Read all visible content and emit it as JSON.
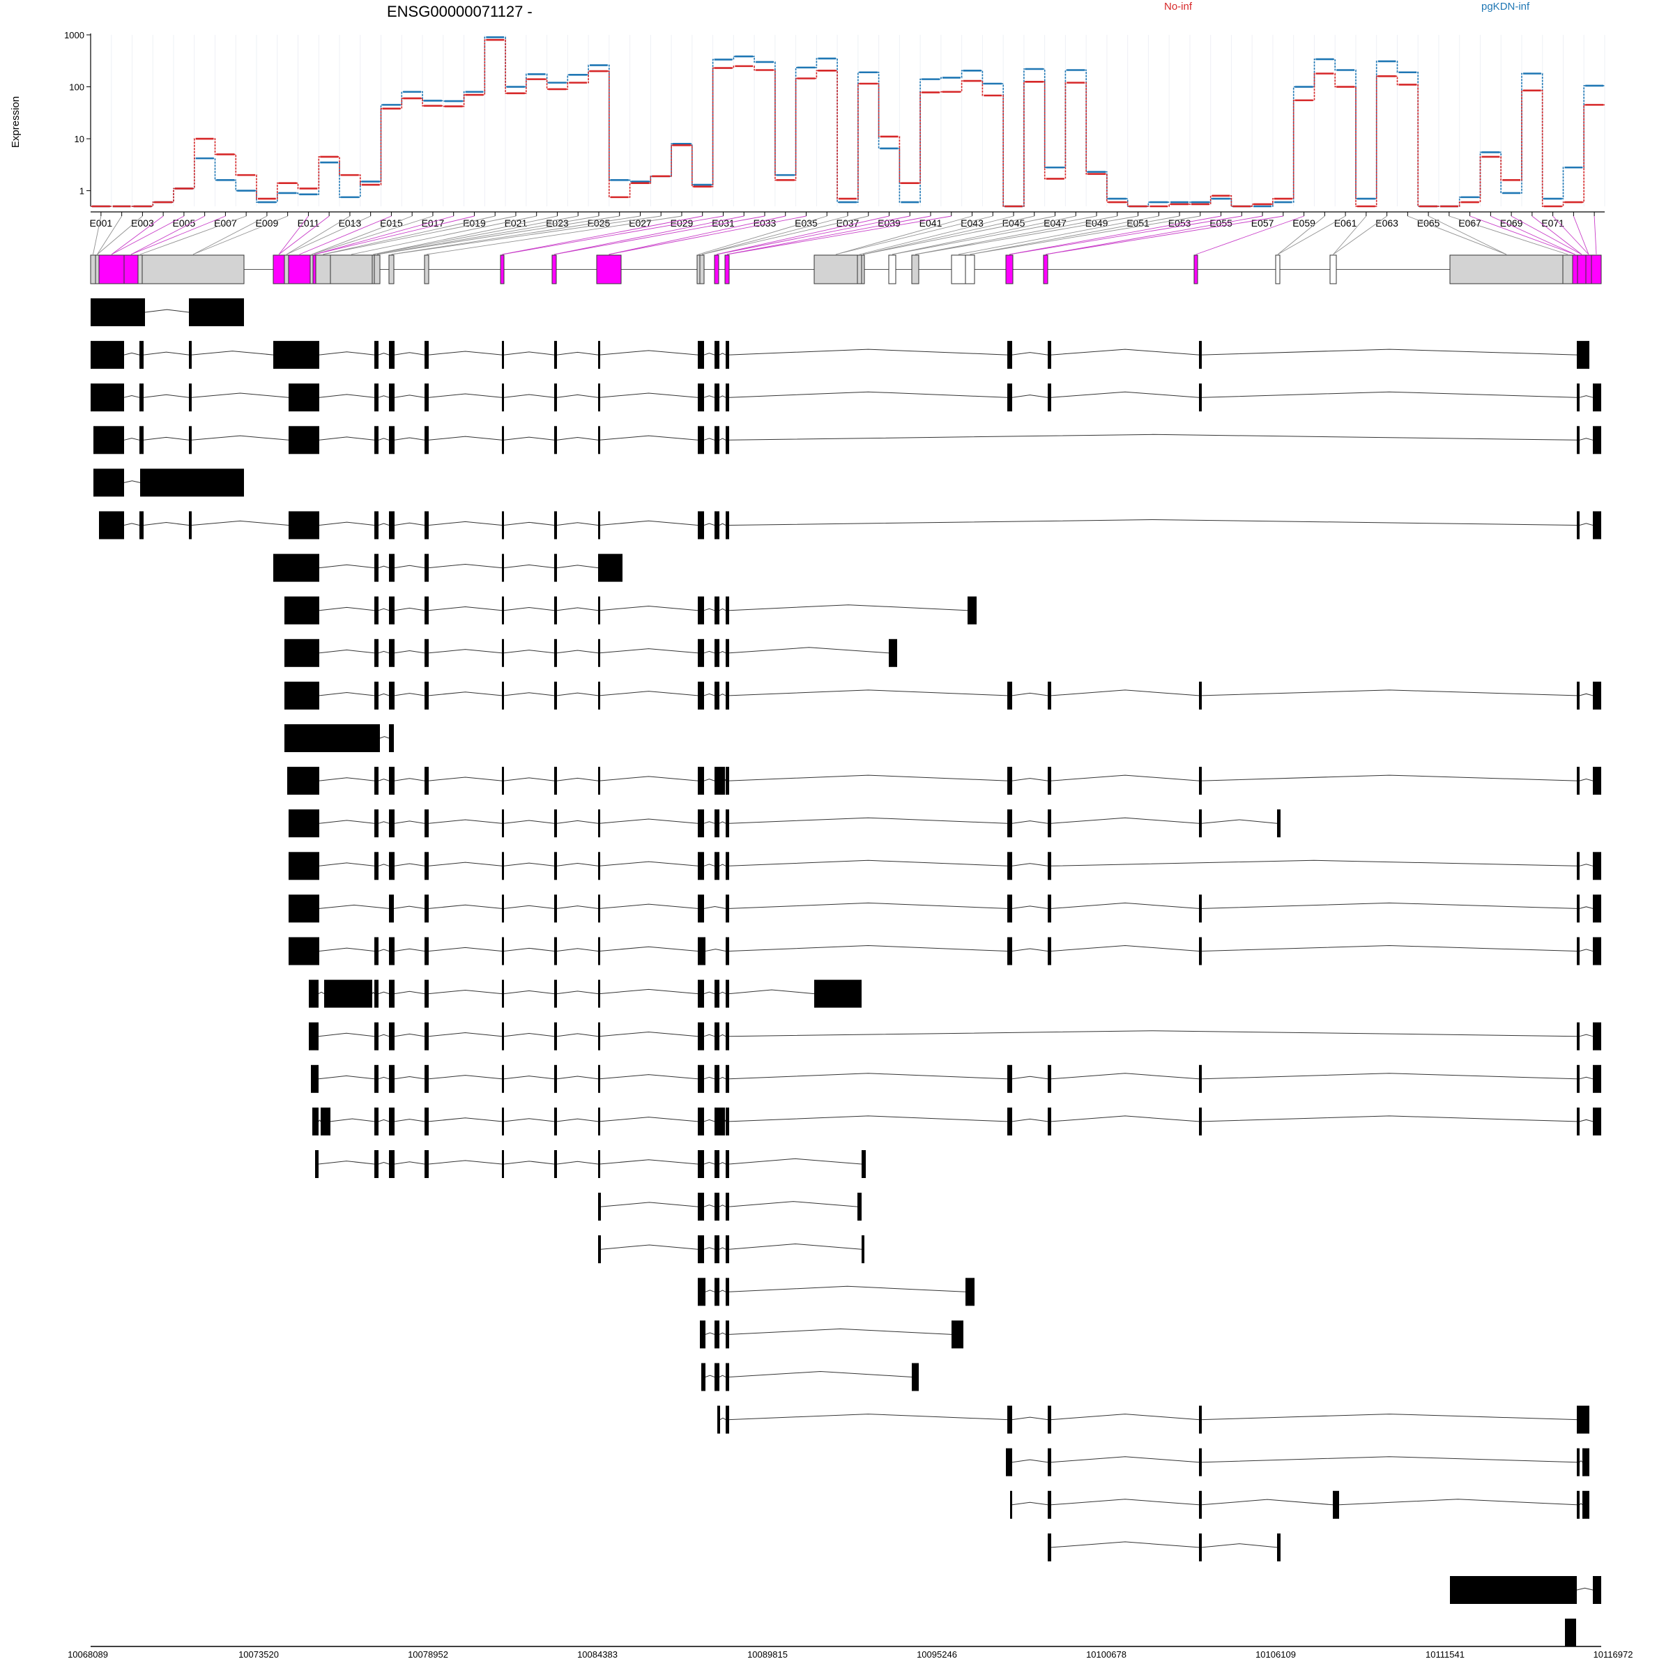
{
  "title": "ENSG00000071127 -",
  "legend": [
    {
      "label": "No-inf",
      "color": "#d62728"
    },
    {
      "label": "pgKDN-inf",
      "color": "#1f77b4"
    }
  ],
  "chart_data": {
    "type": "line",
    "scale": "log",
    "ylabel": "Expression",
    "ylim": [
      0.5,
      1000
    ],
    "yticks": [
      {
        "value": 1,
        "label": "1"
      },
      {
        "value": 10,
        "label": "10"
      },
      {
        "value": 100,
        "label": "100"
      },
      {
        "value": 1000,
        "label": "1000"
      }
    ],
    "exon_labels": [
      "E001",
      "E003",
      "E005",
      "E007",
      "E009",
      "E011",
      "E013",
      "E015",
      "E017",
      "E019",
      "E021",
      "E023",
      "E025",
      "E027",
      "E029",
      "E031",
      "E033",
      "E035",
      "E037",
      "E039",
      "E041",
      "E043",
      "E045",
      "E047",
      "E049",
      "E051",
      "E053",
      "E055",
      "E057",
      "E059",
      "E061",
      "E063",
      "E065",
      "E067",
      "E069",
      "E071"
    ],
    "series": [
      {
        "name": "No-inf",
        "color": "#d62728",
        "values": [
          0.5,
          0.5,
          0.5,
          0.6,
          1.1,
          10,
          5,
          2,
          0.7,
          1.4,
          1.1,
          4.5,
          2,
          1.3,
          38,
          60,
          43,
          42,
          70,
          800,
          75,
          140,
          90,
          120,
          200,
          0.75,
          1.4,
          1.9,
          7.5,
          1.2,
          230,
          250,
          210,
          1.6,
          145,
          205,
          0.7,
          115,
          11,
          1.4,
          78,
          80,
          130,
          68,
          0.5,
          125,
          1.7,
          120,
          2.1,
          0.6,
          0.5,
          0.5,
          0.55,
          0.55,
          0.8,
          0.5,
          0.55,
          0.7,
          55,
          180,
          100,
          0.5,
          160,
          110,
          0.5,
          0.5,
          0.6,
          4.5,
          1.6,
          85,
          0.5,
          0.6,
          45
        ]
      },
      {
        "name": "pgKDN-inf",
        "color": "#1f77b4",
        "values": [
          0.5,
          0.5,
          0.5,
          0.6,
          1.1,
          4.2,
          1.6,
          1,
          0.6,
          0.9,
          0.85,
          3.5,
          0.75,
          1.5,
          45,
          80,
          54,
          53,
          80,
          900,
          100,
          175,
          120,
          170,
          260,
          1.6,
          1.5,
          1.9,
          8,
          1.3,
          335,
          385,
          300,
          2,
          235,
          350,
          0.6,
          190,
          6.5,
          0.6,
          140,
          150,
          205,
          115,
          0.5,
          220,
          2.8,
          210,
          2.3,
          0.7,
          0.5,
          0.6,
          0.6,
          0.6,
          0.7,
          0.5,
          0.5,
          0.6,
          100,
          340,
          210,
          0.7,
          310,
          190,
          0.5,
          0.5,
          0.75,
          5.5,
          0.9,
          180,
          0.7,
          2.8,
          105
        ]
      }
    ]
  },
  "gene_model": {
    "exon_colors": {
      "significant": "#ff00ff",
      "normal": "#d3d3d3",
      "novel": "#ffffff"
    },
    "transcript_count": 32
  },
  "coordinates": [
    "10068089",
    "10073520",
    "10078952",
    "10084383",
    "10089815",
    "10095246",
    "10100678",
    "10106109",
    "10111541",
    "10116972"
  ]
}
